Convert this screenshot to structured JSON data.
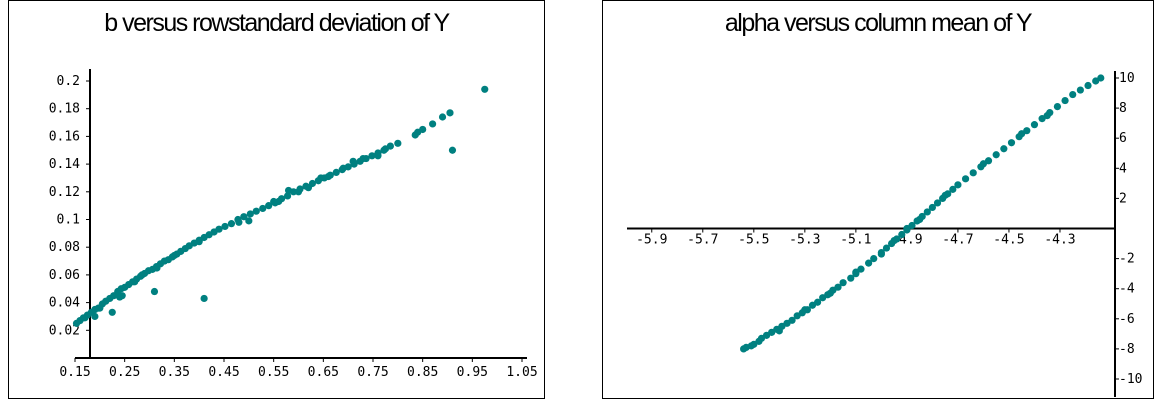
{
  "chart_data": [
    {
      "type": "scatter",
      "title": "b versus rowstandard deviation of Y",
      "xlabel": "",
      "ylabel": "",
      "xlim": [
        0.15,
        1.05
      ],
      "ylim": [
        0.0,
        0.2
      ],
      "xticks": [
        "0.15",
        "0.25",
        "0.35",
        "0.45",
        "0.55",
        "0.65",
        "0.75",
        "0.85",
        "0.95",
        "1.05"
      ],
      "yticks": [
        "0.02",
        "0.04",
        "0.06",
        "0.08",
        "0.1",
        "0.12",
        "0.14",
        "0.16",
        "0.18",
        "0.2"
      ],
      "color": "#008080",
      "grid": false,
      "points": [
        [
          0.153,
          0.025
        ],
        [
          0.16,
          0.027
        ],
        [
          0.167,
          0.029
        ],
        [
          0.175,
          0.031
        ],
        [
          0.183,
          0.033
        ],
        [
          0.19,
          0.035
        ],
        [
          0.197,
          0.036
        ],
        [
          0.205,
          0.039
        ],
        [
          0.212,
          0.041
        ],
        [
          0.22,
          0.043
        ],
        [
          0.228,
          0.045
        ],
        [
          0.236,
          0.048
        ],
        [
          0.243,
          0.05
        ],
        [
          0.25,
          0.051
        ],
        [
          0.258,
          0.053
        ],
        [
          0.266,
          0.055
        ],
        [
          0.274,
          0.057
        ],
        [
          0.282,
          0.059
        ],
        [
          0.29,
          0.061
        ],
        [
          0.298,
          0.063
        ],
        [
          0.306,
          0.064
        ],
        [
          0.314,
          0.066
        ],
        [
          0.322,
          0.068
        ],
        [
          0.33,
          0.07
        ],
        [
          0.338,
          0.071
        ],
        [
          0.346,
          0.073
        ],
        [
          0.355,
          0.075
        ],
        [
          0.363,
          0.077
        ],
        [
          0.372,
          0.079
        ],
        [
          0.38,
          0.081
        ],
        [
          0.39,
          0.083
        ],
        [
          0.4,
          0.085
        ],
        [
          0.41,
          0.087
        ],
        [
          0.42,
          0.089
        ],
        [
          0.43,
          0.091
        ],
        [
          0.44,
          0.093
        ],
        [
          0.452,
          0.095
        ],
        [
          0.465,
          0.097
        ],
        [
          0.478,
          0.1
        ],
        [
          0.49,
          0.102
        ],
        [
          0.503,
          0.104
        ],
        [
          0.515,
          0.106
        ],
        [
          0.528,
          0.108
        ],
        [
          0.54,
          0.11
        ],
        [
          0.553,
          0.112
        ],
        [
          0.566,
          0.115
        ],
        [
          0.578,
          0.117
        ],
        [
          0.59,
          0.12
        ],
        [
          0.603,
          0.122
        ],
        [
          0.615,
          0.124
        ],
        [
          0.628,
          0.126
        ],
        [
          0.64,
          0.128
        ],
        [
          0.652,
          0.13
        ],
        [
          0.664,
          0.132
        ],
        [
          0.676,
          0.134
        ],
        [
          0.688,
          0.136
        ],
        [
          0.7,
          0.138
        ],
        [
          0.712,
          0.14
        ],
        [
          0.724,
          0.142
        ],
        [
          0.736,
          0.144
        ],
        [
          0.748,
          0.146
        ],
        [
          0.76,
          0.148
        ],
        [
          0.772,
          0.15
        ],
        [
          0.785,
          0.153
        ],
        [
          0.8,
          0.155
        ],
        [
          0.835,
          0.161
        ],
        [
          0.85,
          0.165
        ],
        [
          0.87,
          0.169
        ],
        [
          0.89,
          0.174
        ],
        [
          0.905,
          0.177
        ],
        [
          0.975,
          0.194
        ],
        [
          0.91,
          0.15
        ],
        [
          0.225,
          0.033
        ],
        [
          0.245,
          0.045
        ],
        [
          0.31,
          0.048
        ],
        [
          0.41,
          0.043
        ],
        [
          0.62,
          0.123
        ],
        [
          0.55,
          0.113
        ],
        [
          0.58,
          0.121
        ],
        [
          0.5,
          0.099
        ],
        [
          0.66,
          0.131
        ],
        [
          0.2,
          0.036
        ],
        [
          0.73,
          0.144
        ],
        [
          0.76,
          0.146
        ],
        [
          0.4,
          0.084
        ],
        [
          0.315,
          0.065
        ],
        [
          0.27,
          0.055
        ],
        [
          0.35,
          0.074
        ],
        [
          0.48,
          0.098
        ],
        [
          0.6,
          0.12
        ],
        [
          0.69,
          0.137
        ],
        [
          0.84,
          0.163
        ],
        [
          0.17,
          0.029
        ],
        [
          0.19,
          0.03
        ],
        [
          0.24,
          0.044
        ],
        [
          0.285,
          0.06
        ],
        [
          0.56,
          0.113
        ],
        [
          0.645,
          0.13
        ],
        [
          0.71,
          0.142
        ],
        [
          0.775,
          0.151
        ]
      ]
    },
    {
      "type": "scatter",
      "title": "alpha versus column mean of Y",
      "xlabel": "",
      "ylabel": "",
      "xlim": [
        -5.95,
        -4.1
      ],
      "ylim": [
        -10,
        10
      ],
      "xticks": [
        "-5.9",
        "-5.7",
        "-5.5",
        "-5.3",
        "-5.1",
        "-4.9",
        "-4.7",
        "-4.5",
        "-4.3"
      ],
      "yticks": [
        "10",
        "8",
        "6",
        "4",
        "2",
        "-2",
        "-4",
        "-6",
        "-8",
        "-10"
      ],
      "color": "#008080",
      "grid": false,
      "points": [
        [
          -5.54,
          -8.0
        ],
        [
          -5.53,
          -7.9
        ],
        [
          -5.51,
          -7.8
        ],
        [
          -5.5,
          -7.7
        ],
        [
          -5.48,
          -7.5
        ],
        [
          -5.47,
          -7.3
        ],
        [
          -5.45,
          -7.1
        ],
        [
          -5.43,
          -6.9
        ],
        [
          -5.41,
          -6.7
        ],
        [
          -5.39,
          -6.5
        ],
        [
          -5.37,
          -6.3
        ],
        [
          -5.35,
          -6.1
        ],
        [
          -5.33,
          -5.8
        ],
        [
          -5.31,
          -5.6
        ],
        [
          -5.29,
          -5.4
        ],
        [
          -5.27,
          -5.1
        ],
        [
          -5.25,
          -4.9
        ],
        [
          -5.23,
          -4.6
        ],
        [
          -5.21,
          -4.4
        ],
        [
          -5.19,
          -4.1
        ],
        [
          -5.17,
          -3.9
        ],
        [
          -5.15,
          -3.6
        ],
        [
          -5.12,
          -3.3
        ],
        [
          -5.1,
          -3.0
        ],
        [
          -5.08,
          -2.7
        ],
        [
          -5.05,
          -2.3
        ],
        [
          -5.03,
          -2.0
        ],
        [
          -5.0,
          -1.6
        ],
        [
          -4.98,
          -1.3
        ],
        [
          -4.96,
          -1.0
        ],
        [
          -4.94,
          -0.7
        ],
        [
          -4.92,
          -0.4
        ],
        [
          -4.9,
          -0.1
        ],
        [
          -4.88,
          0.2
        ],
        [
          -4.86,
          0.5
        ],
        [
          -4.84,
          0.8
        ],
        [
          -4.82,
          1.1
        ],
        [
          -4.8,
          1.4
        ],
        [
          -4.78,
          1.7
        ],
        [
          -4.76,
          2.0
        ],
        [
          -4.74,
          2.3
        ],
        [
          -4.72,
          2.6
        ],
        [
          -4.7,
          2.9
        ],
        [
          -4.67,
          3.3
        ],
        [
          -4.64,
          3.7
        ],
        [
          -4.61,
          4.1
        ],
        [
          -4.58,
          4.5
        ],
        [
          -4.55,
          4.9
        ],
        [
          -4.52,
          5.3
        ],
        [
          -4.49,
          5.7
        ],
        [
          -4.46,
          6.1
        ],
        [
          -4.43,
          6.5
        ],
        [
          -4.4,
          6.9
        ],
        [
          -4.37,
          7.3
        ],
        [
          -4.34,
          7.7
        ],
        [
          -4.31,
          8.1
        ],
        [
          -4.28,
          8.5
        ],
        [
          -4.25,
          8.9
        ],
        [
          -4.22,
          9.2
        ],
        [
          -4.19,
          9.5
        ],
        [
          -4.16,
          9.8
        ],
        [
          -4.14,
          10.0
        ],
        [
          -5.2,
          -4.3
        ],
        [
          -5.0,
          -1.7
        ],
        [
          -4.95,
          -0.8
        ],
        [
          -4.85,
          0.6
        ],
        [
          -4.75,
          2.2
        ],
        [
          -4.6,
          4.3
        ],
        [
          -4.45,
          6.3
        ],
        [
          -4.35,
          7.5
        ],
        [
          -5.4,
          -6.8
        ],
        [
          -5.3,
          -5.4
        ],
        [
          -5.1,
          -2.9
        ],
        [
          -4.9,
          0.0
        ]
      ]
    }
  ]
}
